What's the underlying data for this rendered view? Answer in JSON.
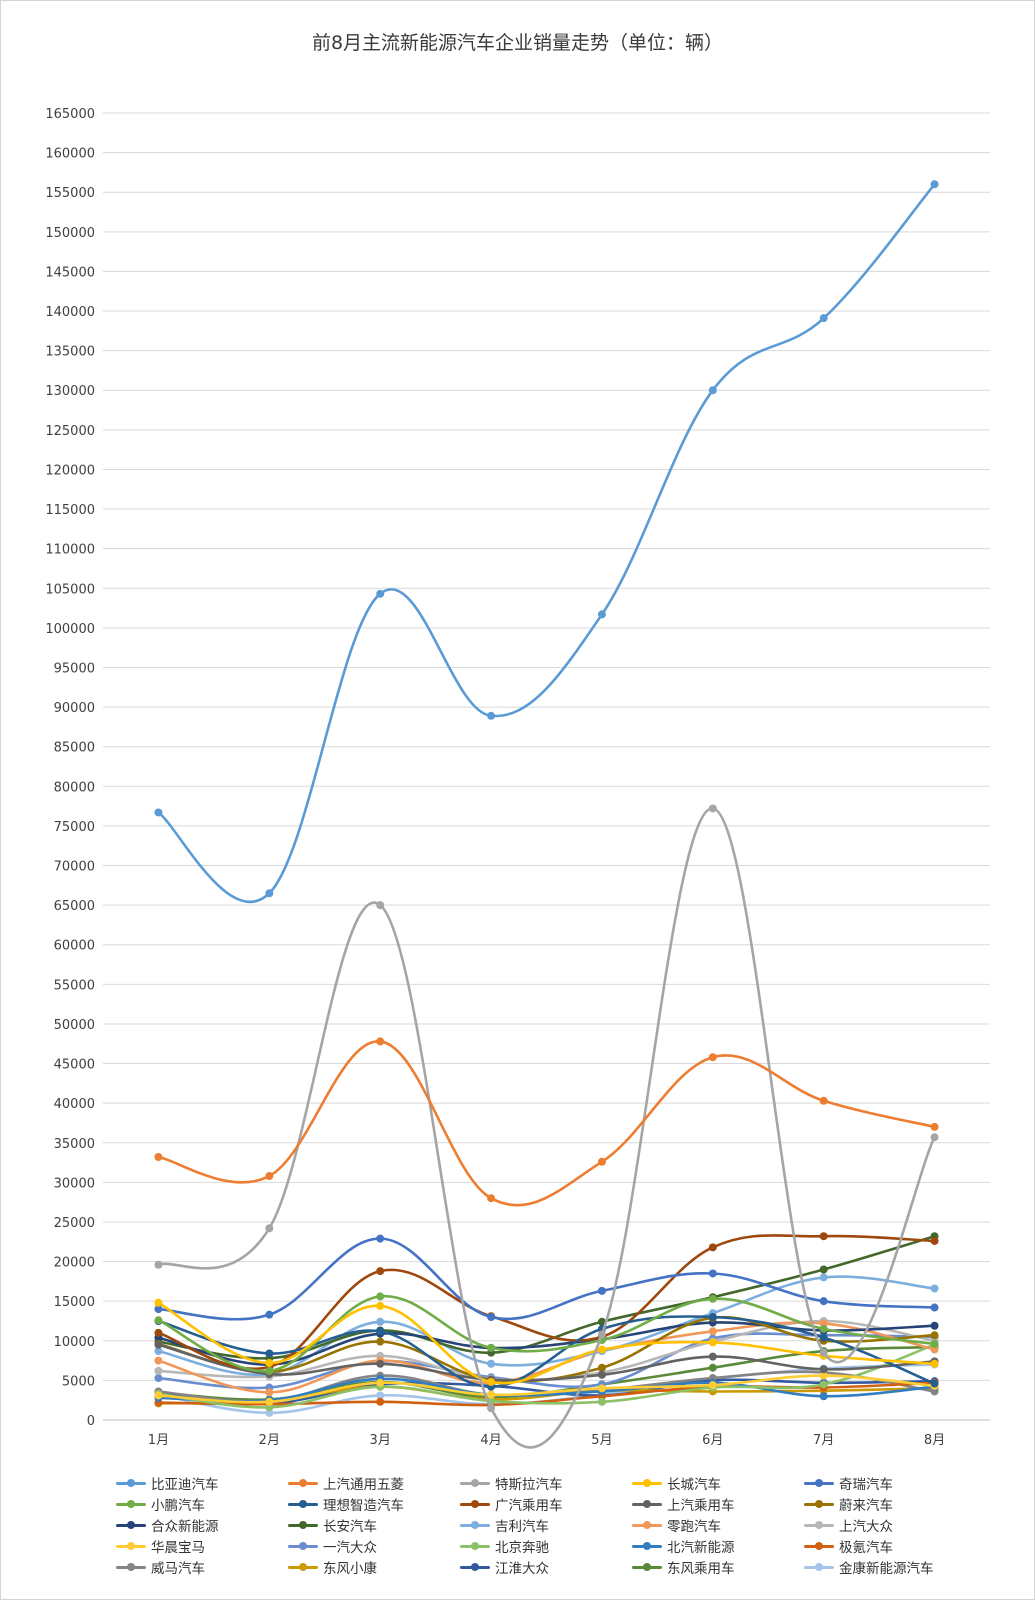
{
  "chart_data": {
    "type": "line",
    "title": "前8月主流新能源汽车企业销量走势（单位：辆）",
    "categories": [
      "1月",
      "2月",
      "3月",
      "4月",
      "5月",
      "6月",
      "7月",
      "8月"
    ],
    "ylim": [
      0,
      165000
    ],
    "yticks": [
      0,
      5000,
      10000,
      15000,
      20000,
      25000,
      30000,
      35000,
      40000,
      45000,
      50000,
      55000,
      60000,
      65000,
      70000,
      75000,
      80000,
      85000,
      90000,
      95000,
      100000,
      105000,
      110000,
      115000,
      120000,
      125000,
      130000,
      135000,
      140000,
      145000,
      150000,
      155000,
      160000,
      165000
    ],
    "grid": true,
    "legend_position": "bottom",
    "series": [
      {
        "name": "比亚迪汽车",
        "color": "#5b9bd5",
        "values": [
          76700,
          66500,
          104300,
          88900,
          101700,
          130000,
          139100,
          156000
        ]
      },
      {
        "name": "上汽通用五菱",
        "color": "#ed7d31",
        "values": [
          33200,
          30800,
          47800,
          28000,
          32600,
          45800,
          40300,
          37000
        ]
      },
      {
        "name": "特斯拉汽车",
        "color": "#a5a5a5",
        "values": [
          19600,
          24200,
          65000,
          1500,
          10800,
          77200,
          8500,
          35700
        ]
      },
      {
        "name": "长城汽车",
        "color": "#ffc000",
        "values": [
          14800,
          7200,
          14400,
          4800,
          8900,
          9800,
          8100,
          7100
        ]
      },
      {
        "name": "奇瑞汽车",
        "color": "#4472c4",
        "values": [
          14000,
          13300,
          22900,
          13000,
          16300,
          18500,
          15000,
          14200
        ]
      },
      {
        "name": "小鹏汽车",
        "color": "#70ad47",
        "values": [
          12600,
          6200,
          15600,
          9100,
          10100,
          15300,
          11500,
          9600
        ]
      },
      {
        "name": "理想智造汽车",
        "color": "#255e91",
        "values": [
          12500,
          8400,
          11200,
          4200,
          11500,
          13000,
          10400,
          4600
        ]
      },
      {
        "name": "广汽乘用车",
        "color": "#9e480e",
        "values": [
          11000,
          6700,
          18800,
          13100,
          10500,
          21800,
          23200,
          22600
        ]
      },
      {
        "name": "上汽乘用车",
        "color": "#636363",
        "values": [
          9500,
          5800,
          7100,
          5100,
          5700,
          8000,
          6400,
          7400
        ]
      },
      {
        "name": "蔚来汽车",
        "color": "#997300",
        "values": [
          9600,
          6100,
          9900,
          5100,
          6600,
          12900,
          10000,
          10700
        ]
      },
      {
        "name": "合众新能源",
        "color": "#264478",
        "values": [
          10400,
          7000,
          10900,
          9100,
          10200,
          12300,
          11300,
          11900
        ]
      },
      {
        "name": "长安汽车",
        "color": "#43682b",
        "values": [
          9900,
          7800,
          11300,
          8500,
          12400,
          15500,
          19000,
          23200
        ]
      },
      {
        "name": "吉利汽车",
        "color": "#7cafdd",
        "values": [
          8700,
          5800,
          12400,
          7100,
          8700,
          13500,
          18000,
          16600
        ]
      },
      {
        "name": "零跑汽车",
        "color": "#f1975a",
        "values": [
          7500,
          3500,
          7500,
          4700,
          8700,
          11200,
          12200,
          8900
        ]
      },
      {
        "name": "上汽大众",
        "color": "#b7b7b7",
        "values": [
          6200,
          5500,
          8100,
          5200,
          6000,
          9900,
          12500,
          10000
        ]
      },
      {
        "name": "华晨宝马",
        "color": "#ffcd33",
        "values": [
          3100,
          2300,
          4700,
          3200,
          4000,
          4400,
          5600,
          4300
        ]
      },
      {
        "name": "一汽大众",
        "color": "#698ed0",
        "values": [
          5300,
          4100,
          7400,
          5400,
          4500,
          10300,
          10700,
          10500
        ]
      },
      {
        "name": "北京奔驰",
        "color": "#8cc168",
        "values": [
          3300,
          1600,
          4200,
          2400,
          2300,
          4100,
          4500,
          9500
        ]
      },
      {
        "name": "北汽新能源",
        "color": "#327dc2",
        "values": [
          2800,
          2500,
          5200,
          3200,
          3600,
          4700,
          3000,
          4200
        ]
      },
      {
        "name": "极氪汽车",
        "color": "#d26012",
        "values": [
          2200,
          2000,
          2300,
          1900,
          3000,
          4200,
          4100,
          4700
        ]
      },
      {
        "name": "威马汽车",
        "color": "#848484",
        "values": [
          3600,
          2400,
          5600,
          3200,
          3800,
          5300,
          6000,
          3600
        ]
      },
      {
        "name": "东风小康",
        "color": "#cc9a00",
        "values": [
          2100,
          2400,
          4200,
          2600,
          3700,
          3600,
          3700,
          4000
        ]
      },
      {
        "name": "江淮大众",
        "color": "#335aa1",
        "values": [
          3300,
          2100,
          4500,
          4300,
          3100,
          5000,
          4700,
          4900
        ]
      },
      {
        "name": "东风乘用车",
        "color": "#5a8a39",
        "values": [
          3500,
          2600,
          4800,
          2900,
          4500,
          6600,
          8700,
          9200
        ]
      },
      {
        "name": "金康新能源汽车",
        "color": "#a3c4eb",
        "values": [
          3200,
          900,
          3100,
          2000,
          3200,
          5200,
          6500,
          7000
        ]
      }
    ]
  }
}
